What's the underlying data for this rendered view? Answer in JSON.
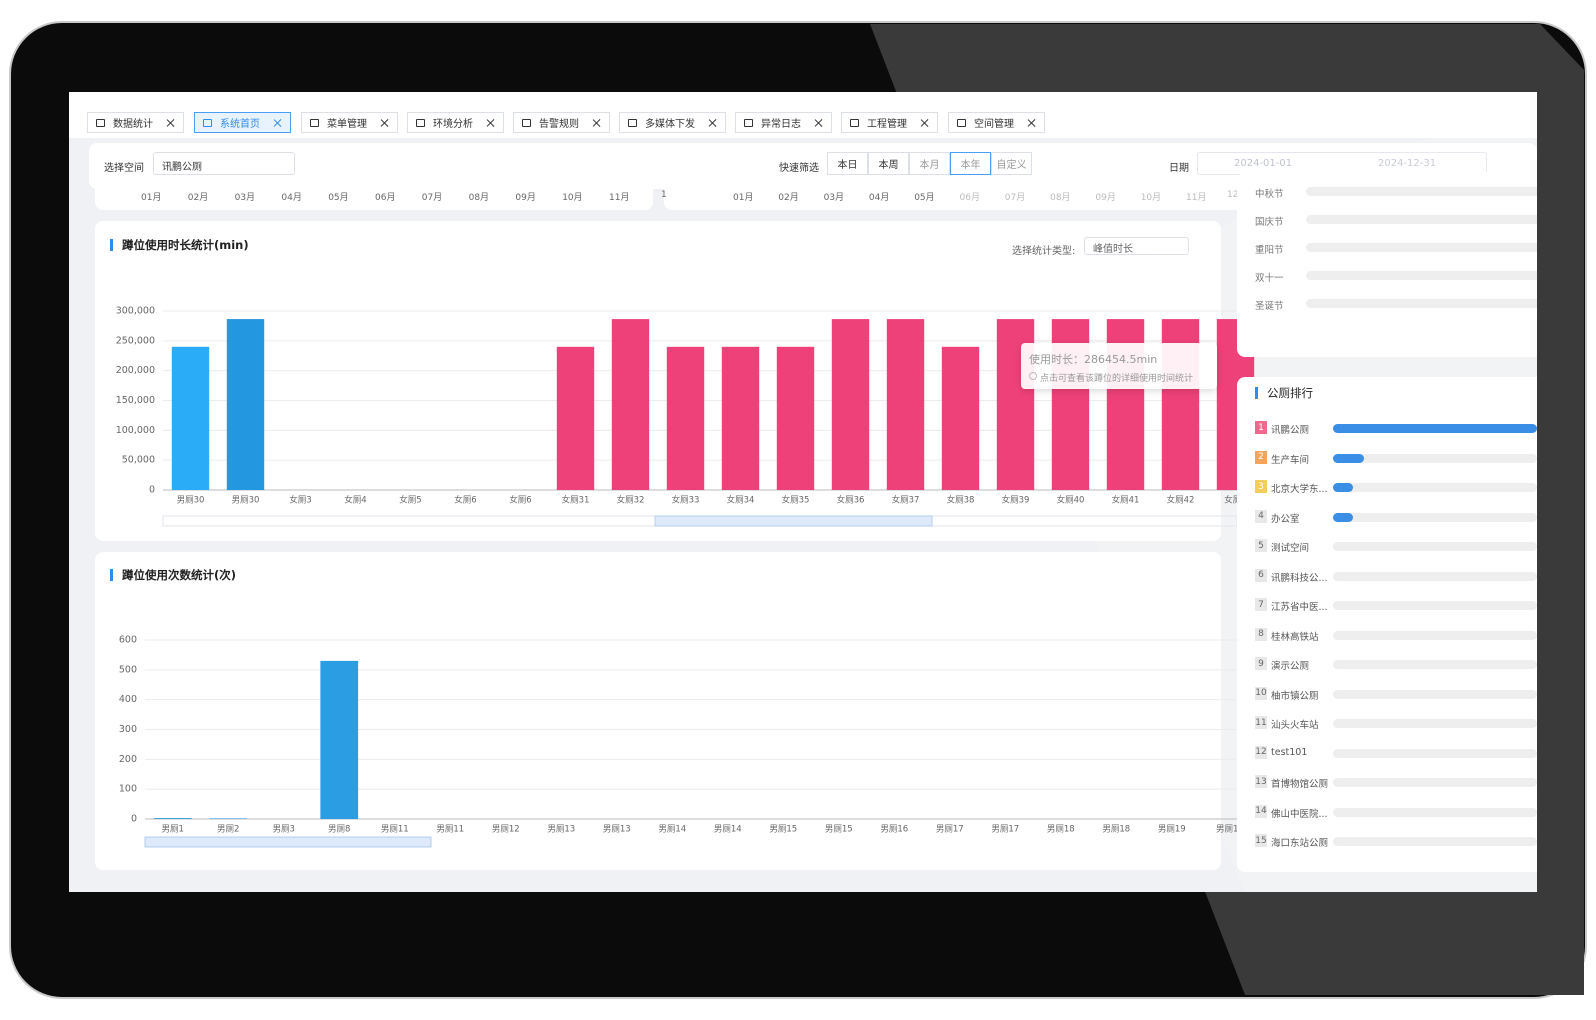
{
  "tabs": [
    {
      "label": "数据统计"
    },
    {
      "label": "系统首页"
    },
    {
      "label": "菜单管理"
    },
    {
      "label": "环境分析"
    },
    {
      "label": "告警规则"
    },
    {
      "label": "多媒体下发"
    },
    {
      "label": "异常日志"
    },
    {
      "label": "工程管理"
    },
    {
      "label": "空间管理"
    }
  ],
  "active_tab": 1,
  "filter": {
    "space_label": "选择空间",
    "space_value": "讯鹏公厕",
    "quick_label": "快速筛选",
    "quick_options": [
      "本日",
      "本周",
      "本月",
      "本年",
      "自定义"
    ],
    "active_quick": 3,
    "date_label": "日期",
    "date_start": "2024-01-01",
    "date_end": "2024-12-31"
  },
  "month_strip": {
    "left": [
      "01月",
      "02月",
      "03月",
      "04月",
      "05月",
      "06月",
      "07月",
      "08月",
      "09月",
      "10月",
      "11月"
    ],
    "right": [
      "1",
      "01月",
      "02月",
      "03月",
      "04月",
      "05月",
      "06月",
      "07月",
      "08月",
      "09月",
      "10月",
      "11月",
      "12"
    ]
  },
  "chart_data": [
    {
      "type": "bar",
      "title": "蹲位使用时长统计(min)",
      "select_label": "选择统计类型:",
      "select_value": "峰值时长",
      "categories": [
        "男厕30",
        "男厕30",
        "女厕3",
        "女厕4",
        "女厕5",
        "女厕6",
        "女厕6",
        "女厕31",
        "女厕32",
        "女厕33",
        "女厕34",
        "女厕35",
        "女厕36",
        "女厕37",
        "女厕38",
        "女厕39",
        "女厕40",
        "女厕41",
        "女厕42",
        "女厕4"
      ],
      "values": [
        240000,
        286454.5,
        0,
        0,
        0,
        0,
        0,
        240000,
        286454.5,
        240000,
        240000,
        240000,
        286454.5,
        286454.5,
        240000,
        286454.5,
        286454.5,
        286454.5,
        286454.5,
        286454.5
      ],
      "colors": [
        "#2aacf7",
        "#2397e0",
        "#ef4179",
        "#ef4179",
        "#ef4179",
        "#ef4179",
        "#ef4179",
        "#ef4179",
        "#ef4179",
        "#ef4179",
        "#ef4179",
        "#ef4179",
        "#ef4179",
        "#ef4179",
        "#ef4179",
        "#ef4179",
        "#ef4179",
        "#ef4179",
        "#ef4179",
        "#ef4179"
      ],
      "ylim": [
        0,
        300000
      ],
      "yticks": [
        0,
        {
          "value": 50000,
          "label": "50,000"
        },
        {
          "value": 100000,
          "label": "100,000"
        },
        {
          "value": 150000,
          "label": "150,000"
        },
        {
          "value": 200000,
          "label": "200,000"
        },
        {
          "value": 250000,
          "label": "250,000"
        },
        {
          "value": 300000,
          "label": "300,000"
        }
      ],
      "grid": true,
      "tooltip": {
        "title": "使用时长：286454.5min",
        "hint": "点击可查看该蹲位的详细使用时间统计"
      }
    },
    {
      "type": "bar",
      "title": "蹲位使用次数统计(次)",
      "categories": [
        "男厕1",
        "男厕2",
        "男厕3",
        "男厕8",
        "男厕11",
        "男厕11",
        "男厕12",
        "男厕13",
        "男厕13",
        "男厕14",
        "男厕14",
        "男厕15",
        "男厕15",
        "男厕16",
        "男厕17",
        "男厕17",
        "男厕18",
        "男厕18",
        "男厕19",
        "男厕1"
      ],
      "values": [
        3,
        2,
        0,
        530,
        0,
        0,
        0,
        0,
        0,
        0,
        0,
        0,
        0,
        0,
        0,
        0,
        0,
        0,
        0,
        0
      ],
      "color": "#2a9de3",
      "ylim": [
        0,
        600
      ],
      "yticks": [
        0,
        100,
        200,
        300,
        400,
        500,
        600
      ],
      "grid": true
    }
  ],
  "holidays": {
    "items": [
      "中秋节",
      "国庆节",
      "重阳节",
      "双十一",
      "圣诞节"
    ]
  },
  "ranking": {
    "title": "公厕排行",
    "items": [
      {
        "rank": 1,
        "name": "讯鹏公厕",
        "value": 100
      },
      {
        "rank": 2,
        "name": "生产车间",
        "value": 15
      },
      {
        "rank": 3,
        "name": "北京大学东...",
        "value": 10
      },
      {
        "rank": 4,
        "name": "办公室",
        "value": 10
      },
      {
        "rank": 5,
        "name": "测试空间",
        "value": 0
      },
      {
        "rank": 6,
        "name": "讯鹏科技公...",
        "value": 0
      },
      {
        "rank": 7,
        "name": "江苏省中医...",
        "value": 0
      },
      {
        "rank": 8,
        "name": "桂林高铁站",
        "value": 0
      },
      {
        "rank": 9,
        "name": "演示公厕",
        "value": 0
      },
      {
        "rank": 10,
        "name": "柚市镇公厕",
        "value": 0
      },
      {
        "rank": 11,
        "name": "汕头火车站",
        "value": 0
      },
      {
        "rank": 12,
        "name": "test101",
        "value": 0
      },
      {
        "rank": 13,
        "name": "首博物馆公厕",
        "value": 0
      },
      {
        "rank": 14,
        "name": "佛山中医院...",
        "value": 0
      },
      {
        "rank": 15,
        "name": "海口东站公厕",
        "value": 0
      }
    ]
  }
}
